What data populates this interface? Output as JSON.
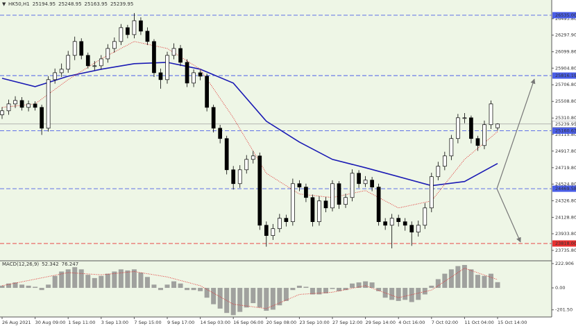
{
  "chart_data": [
    {
      "type": "candlestick",
      "title": "HK50,H1",
      "categories": [
        "26 Aug 2021",
        null,
        null,
        null,
        null,
        "30 Aug 09:00",
        null,
        null,
        null,
        null,
        "1 Sep 11:00",
        null,
        null,
        null,
        null,
        "3 Sep 13:00",
        null,
        null,
        null,
        null,
        "7 Sep 15:00",
        null,
        null,
        null,
        null,
        "9 Sep 17:00",
        null,
        null,
        null,
        null,
        "14 Sep 03:00",
        null,
        null,
        null,
        null,
        "16 Sep 06:00",
        null,
        null,
        null,
        null,
        "20 Sep 08:00",
        null,
        null,
        null,
        null,
        "23 Sep 10:00",
        null,
        null,
        null,
        null,
        "27 Sep 12:00",
        null,
        null,
        null,
        null,
        "29 Sep 14:00",
        null,
        null,
        null,
        null,
        "4 Oct 16:00",
        null,
        null,
        null,
        null,
        "7 Oct 02:00",
        null,
        null,
        null,
        null,
        "11 Oct 04:00",
        null,
        null,
        null,
        null,
        "15 Oct 14:00"
      ],
      "open": [
        25350,
        25397,
        25479,
        25520,
        25438,
        25479,
        25438,
        25190,
        25768,
        25850,
        25892,
        26057,
        26222,
        26057,
        25933,
        25933,
        26015,
        26139,
        26222,
        26387,
        26304,
        26469,
        26345,
        26222,
        25850,
        25768,
        26057,
        26139,
        25974,
        25727,
        25850,
        25809,
        25438,
        25190,
        25067,
        24695,
        24530,
        24695,
        24819,
        24860,
        24035,
        23912,
        23994,
        24118,
        24077,
        24530,
        24489,
        24365,
        24077,
        24324,
        24241,
        24530,
        24283,
        24365,
        24654,
        24530,
        24572,
        24489,
        24077,
        24035,
        24118,
        24077,
        24035,
        23953,
        24035,
        24241,
        24613,
        24737,
        24860,
        25067,
        25314,
        25314,
        25067,
        24984,
        25232,
        25194.95
      ],
      "high": [
        25440,
        25530,
        25570,
        25560,
        25520,
        25510,
        25470,
        25810,
        25900,
        25960,
        26110,
        26280,
        26260,
        26090,
        25990,
        26060,
        26190,
        26270,
        26430,
        26420,
        26560,
        26510,
        26390,
        26250,
        25900,
        26100,
        26200,
        26180,
        26010,
        25890,
        25880,
        25840,
        25470,
        25230,
        25100,
        24740,
        24750,
        24870,
        24920,
        24900,
        24080,
        24050,
        24170,
        24160,
        24590,
        24570,
        24530,
        24400,
        24380,
        24370,
        24570,
        24560,
        24410,
        24700,
        24690,
        24620,
        24610,
        24530,
        24120,
        24170,
        24160,
        24120,
        24080,
        24090,
        24300,
        24660,
        24790,
        24910,
        25110,
        25360,
        25370,
        25340,
        25100,
        25280,
        25520,
        25248.95
      ],
      "low": [
        25300,
        25350,
        25430,
        25400,
        25390,
        25400,
        25110,
        25150,
        25720,
        25800,
        25850,
        26000,
        26010,
        25900,
        25880,
        25890,
        25970,
        26090,
        26180,
        26260,
        26260,
        26300,
        26180,
        25800,
        25660,
        25720,
        26010,
        25930,
        25680,
        25680,
        25760,
        25390,
        25140,
        25010,
        24640,
        24460,
        24480,
        24650,
        24770,
        23980,
        23780,
        23860,
        23950,
        24020,
        24030,
        24440,
        24310,
        24020,
        24030,
        24190,
        24200,
        24230,
        24240,
        24320,
        24480,
        24490,
        24440,
        24030,
        23980,
        23760,
        24020,
        23970,
        23790,
        23900,
        23990,
        24190,
        24570,
        24690,
        24810,
        25010,
        25250,
        25010,
        24920,
        24940,
        25180,
        25163.95
      ],
      "close": [
        25397,
        25479,
        25520,
        25438,
        25479,
        25438,
        25190,
        25768,
        25850,
        25892,
        26057,
        26222,
        26057,
        25933,
        25933,
        26015,
        26139,
        26222,
        26387,
        26304,
        26469,
        26345,
        26222,
        25850,
        25768,
        26057,
        26139,
        25974,
        25727,
        25850,
        25809,
        25438,
        25190,
        25067,
        24695,
        24530,
        24695,
        24819,
        24860,
        24035,
        23912,
        23994,
        24118,
        24077,
        24530,
        24489,
        24365,
        24077,
        24324,
        24241,
        24530,
        24283,
        24365,
        24654,
        24530,
        24572,
        24489,
        24077,
        24035,
        24118,
        24077,
        24035,
        23953,
        24035,
        24241,
        24613,
        24737,
        24860,
        25067,
        25314,
        25314,
        25067,
        24984,
        25232,
        25479,
        25239.95
      ],
      "up_color": "#ffffff",
      "down_color": "#000000",
      "wick_color": "#000000",
      "series": [
        {
          "color": "#1a1ab4",
          "style": "solid",
          "x": [
            0,
            5,
            10,
            15,
            20,
            25,
            30,
            35,
            40,
            45,
            50,
            55,
            60,
            65,
            70,
            75
          ],
          "values": [
            25784,
            25685,
            25809,
            25892,
            25958,
            25974,
            25892,
            25727,
            25273,
            25025,
            24819,
            24720,
            24613,
            24506,
            24555,
            24770
          ]
        },
        {
          "color": "#e03030",
          "style": "dotted",
          "x": [
            0,
            5,
            10,
            15,
            20,
            25,
            30,
            35,
            40,
            45,
            50,
            55,
            60,
            65,
            70,
            75
          ],
          "values": [
            25438,
            25479,
            25768,
            26015,
            26222,
            26139,
            25892,
            25314,
            24654,
            24407,
            24365,
            24448,
            24241,
            24324,
            24819,
            25149
          ]
        }
      ],
      "levels": [
        {
          "value": 26535,
          "label": "26535.00",
          "color": "#4a5ee8"
        },
        {
          "value": 25816.19,
          "label": "25816.19",
          "color": "#4a5ee8"
        },
        {
          "value": 25160.63,
          "label": "25160.63",
          "color": "#4a5ee8"
        },
        {
          "value": 24469.58,
          "label": "24469.58",
          "color": "#4a5ee8"
        },
        {
          "value": 23818,
          "label": "23818.00",
          "color": "#e83030"
        }
      ],
      "ylim": [
        23620,
        26716
      ],
      "yticks": [
        {
          "value": 26493.8,
          "label": "26493.80"
        },
        {
          "value": 26297.9,
          "label": "26297.90"
        },
        {
          "value": 26099.86,
          "label": "26099.86"
        },
        {
          "value": 25904.8,
          "label": "25904.80"
        },
        {
          "value": 25706.8,
          "label": "25706.80"
        },
        {
          "value": 25508.8,
          "label": "25508.80"
        },
        {
          "value": 25310.8,
          "label": "25310.80"
        },
        {
          "value": 25115.8,
          "label": "25115.80"
        },
        {
          "value": 24917.8,
          "label": "24917.80"
        },
        {
          "value": 24719.8,
          "label": "24719.80"
        },
        {
          "value": 24524.8,
          "label": "24524.80"
        },
        {
          "value": 24326.8,
          "label": "24326.80"
        },
        {
          "value": 24128.8,
          "label": "24128.80"
        },
        {
          "value": 23933.8,
          "label": "23933.80"
        },
        {
          "value": 23735.8,
          "label": "23735.80"
        }
      ]
    },
    {
      "type": "macd",
      "title": "MACD(12,26,9)",
      "color": "#8c8c8c",
      "values": [
        20,
        40,
        50,
        30,
        20,
        10,
        -20,
        30,
        110,
        150,
        170,
        190,
        170,
        120,
        90,
        110,
        130,
        150,
        170,
        160,
        170,
        140,
        100,
        30,
        -20,
        30,
        60,
        40,
        -20,
        -20,
        -30,
        -90,
        -150,
        -190,
        -230,
        -250,
        -220,
        -180,
        -140,
        -180,
        -210,
        -200,
        -160,
        -120,
        -20,
        20,
        10,
        -60,
        -60,
        -50,
        -10,
        -30,
        -20,
        40,
        50,
        60,
        50,
        -30,
        -90,
        -110,
        -120,
        -110,
        -130,
        -110,
        -60,
        20,
        80,
        130,
        170,
        200,
        210,
        170,
        120,
        110,
        130,
        52.342
      ],
      "signal": {
        "color": "#e03030",
        "x": [
          0,
          5,
          10,
          15,
          20,
          25,
          30,
          35,
          40,
          45,
          50,
          55,
          60,
          65,
          70,
          75
        ],
        "values": [
          20,
          80,
          140,
          120,
          150,
          100,
          20,
          -150,
          -190,
          -60,
          -40,
          20,
          -90,
          -20,
          180,
          76.247
        ]
      },
      "ylim": [
        -267,
        242
      ],
      "yticks": [
        222.906,
        {
          "value": 0,
          "label": "0.00"
        },
        {
          "value": -201.5,
          "label": "-201.50"
        }
      ]
    }
  ]
}
